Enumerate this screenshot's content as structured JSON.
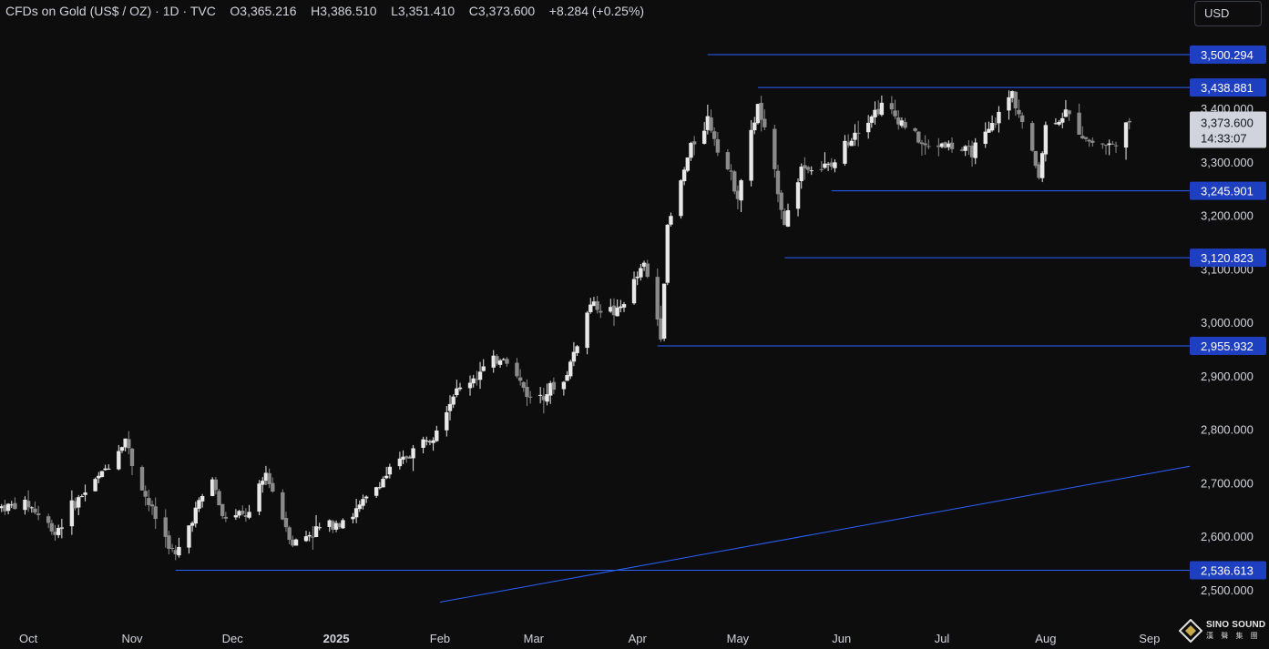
{
  "header": {
    "symbol": "CFDs on Gold (US$ / OZ)",
    "interval": "1D",
    "source": "TVC",
    "open_label": "O",
    "open": "3,365.216",
    "high_label": "H",
    "high": "3,386.510",
    "low_label": "L",
    "low": "3,351.410",
    "close_label": "C",
    "close": "3,373.600",
    "change": "+8.284 (+0.25%)"
  },
  "currency_button": "USD",
  "logo": {
    "icon": "diamond-logo-icon",
    "name": "SINO SOUND",
    "subtitle": "漢 聲 集 團"
  },
  "colors": {
    "background": "#0d0d0d",
    "candle_up": "#e8e8e8",
    "candle_down": "#8a8a8a",
    "level_line": "#2962ff",
    "level_label_bg": "#1e3fbf",
    "current_price_bg": "#d1d4dc",
    "axis_text": "#d1d4dc"
  },
  "chart_data": {
    "type": "candlestick",
    "title": "CFDs on Gold (US$ / OZ) · 1D · TVC",
    "ylim": [
      2470,
      3545
    ],
    "y_ticks": [
      {
        "value": 2500,
        "label": "2,500.000"
      },
      {
        "value": 2600,
        "label": "2,600.000"
      },
      {
        "value": 2700,
        "label": "2,700.000"
      },
      {
        "value": 2800,
        "label": "2,800.000"
      },
      {
        "value": 2900,
        "label": "2,900.000"
      },
      {
        "value": 3000,
        "label": "3,000.000"
      },
      {
        "value": 3100,
        "label": "3,100.000"
      },
      {
        "value": 3200,
        "label": "3,200.000"
      },
      {
        "value": 3300,
        "label": "3,300.000"
      },
      {
        "value": 3400,
        "label": "3,400.000"
      }
    ],
    "x_ticks": [
      {
        "date": "2024-10-01",
        "label": "Oct",
        "bold": false
      },
      {
        "date": "2024-11-01",
        "label": "Nov",
        "bold": false
      },
      {
        "date": "2024-12-01",
        "label": "Dec",
        "bold": false
      },
      {
        "date": "2025-01-01",
        "label": "2025",
        "bold": true
      },
      {
        "date": "2025-02-01",
        "label": "Feb",
        "bold": false
      },
      {
        "date": "2025-03-01",
        "label": "Mar",
        "bold": false
      },
      {
        "date": "2025-04-01",
        "label": "Apr",
        "bold": false
      },
      {
        "date": "2025-05-01",
        "label": "May",
        "bold": false
      },
      {
        "date": "2025-06-01",
        "label": "Jun",
        "bold": false
      },
      {
        "date": "2025-07-01",
        "label": "Jul",
        "bold": false
      },
      {
        "date": "2025-08-01",
        "label": "Aug",
        "bold": false
      },
      {
        "date": "2025-09-01",
        "label": "Sep",
        "bold": false
      }
    ],
    "current_price": {
      "value": 3373.6,
      "label": "3,373.600",
      "countdown": "14:33:07"
    },
    "horizontal_levels": [
      {
        "value": 3500.294,
        "label": "3,500.294",
        "from_date": "2025-04-22"
      },
      {
        "value": 3438.881,
        "label": "3,438.881",
        "from_date": "2025-05-07"
      },
      {
        "value": 3245.901,
        "label": "3,245.901",
        "from_date": "2025-05-29"
      },
      {
        "value": 3120.823,
        "label": "3,120.823",
        "from_date": "2025-05-15"
      },
      {
        "value": 2955.932,
        "label": "2,955.932",
        "from_date": "2025-04-07"
      },
      {
        "value": 2536.613,
        "label": "2,536.613",
        "from_date": "2024-11-14"
      }
    ],
    "trendline": {
      "from": {
        "date": "2025-02-01",
        "value": 2477
      },
      "to": {
        "date": "2025-09-02",
        "value": 2731
      }
    },
    "price_path": [
      {
        "date": "2024-09-23",
        "close": 2655
      },
      {
        "date": "2024-10-01",
        "close": 2660
      },
      {
        "date": "2024-10-09",
        "close": 2608
      },
      {
        "date": "2024-10-15",
        "close": 2663
      },
      {
        "date": "2024-10-23",
        "close": 2717
      },
      {
        "date": "2024-10-30",
        "close": 2783
      },
      {
        "date": "2024-11-01",
        "close": 2737
      },
      {
        "date": "2024-11-06",
        "close": 2660
      },
      {
        "date": "2024-11-14",
        "close": 2560
      },
      {
        "date": "2024-11-20",
        "close": 2650
      },
      {
        "date": "2024-11-25",
        "close": 2708
      },
      {
        "date": "2024-11-28",
        "close": 2635
      },
      {
        "date": "2024-12-06",
        "close": 2640
      },
      {
        "date": "2024-12-11",
        "close": 2718
      },
      {
        "date": "2024-12-19",
        "close": 2587
      },
      {
        "date": "2024-12-27",
        "close": 2615
      },
      {
        "date": "2025-01-06",
        "close": 2640
      },
      {
        "date": "2025-01-16",
        "close": 2715
      },
      {
        "date": "2025-01-30",
        "close": 2795
      },
      {
        "date": "2025-02-05",
        "close": 2865
      },
      {
        "date": "2025-02-11",
        "close": 2897
      },
      {
        "date": "2025-02-20",
        "close": 2938
      },
      {
        "date": "2025-02-28",
        "close": 2858
      },
      {
        "date": "2025-03-10",
        "close": 2888
      },
      {
        "date": "2025-03-18",
        "close": 3035
      },
      {
        "date": "2025-03-26",
        "close": 3017
      },
      {
        "date": "2025-04-03",
        "close": 3108
      },
      {
        "date": "2025-04-08",
        "close": 2982
      },
      {
        "date": "2025-04-10",
        "close": 3175
      },
      {
        "date": "2025-04-17",
        "close": 3328
      },
      {
        "date": "2025-04-22",
        "close": 3380
      },
      {
        "date": "2025-04-24",
        "close": 3348
      },
      {
        "date": "2025-05-01",
        "close": 3240
      },
      {
        "date": "2025-05-07",
        "close": 3405
      },
      {
        "date": "2025-05-13",
        "close": 3250
      },
      {
        "date": "2025-05-15",
        "close": 3185
      },
      {
        "date": "2025-05-20",
        "close": 3290
      },
      {
        "date": "2025-05-29",
        "close": 3290
      },
      {
        "date": "2025-06-05",
        "close": 3360
      },
      {
        "date": "2025-06-13",
        "close": 3405
      },
      {
        "date": "2025-06-20",
        "close": 3370
      },
      {
        "date": "2025-06-26",
        "close": 3325
      },
      {
        "date": "2025-07-01",
        "close": 3335
      },
      {
        "date": "2025-07-09",
        "close": 3316
      },
      {
        "date": "2025-07-14",
        "close": 3345
      },
      {
        "date": "2025-07-22",
        "close": 3430
      },
      {
        "date": "2025-07-30",
        "close": 3275
      },
      {
        "date": "2025-08-01",
        "close": 3365
      },
      {
        "date": "2025-08-07",
        "close": 3390
      },
      {
        "date": "2025-08-14",
        "close": 3338
      },
      {
        "date": "2025-08-21",
        "close": 3330
      },
      {
        "date": "2025-08-26",
        "close": 3373.6
      }
    ]
  }
}
